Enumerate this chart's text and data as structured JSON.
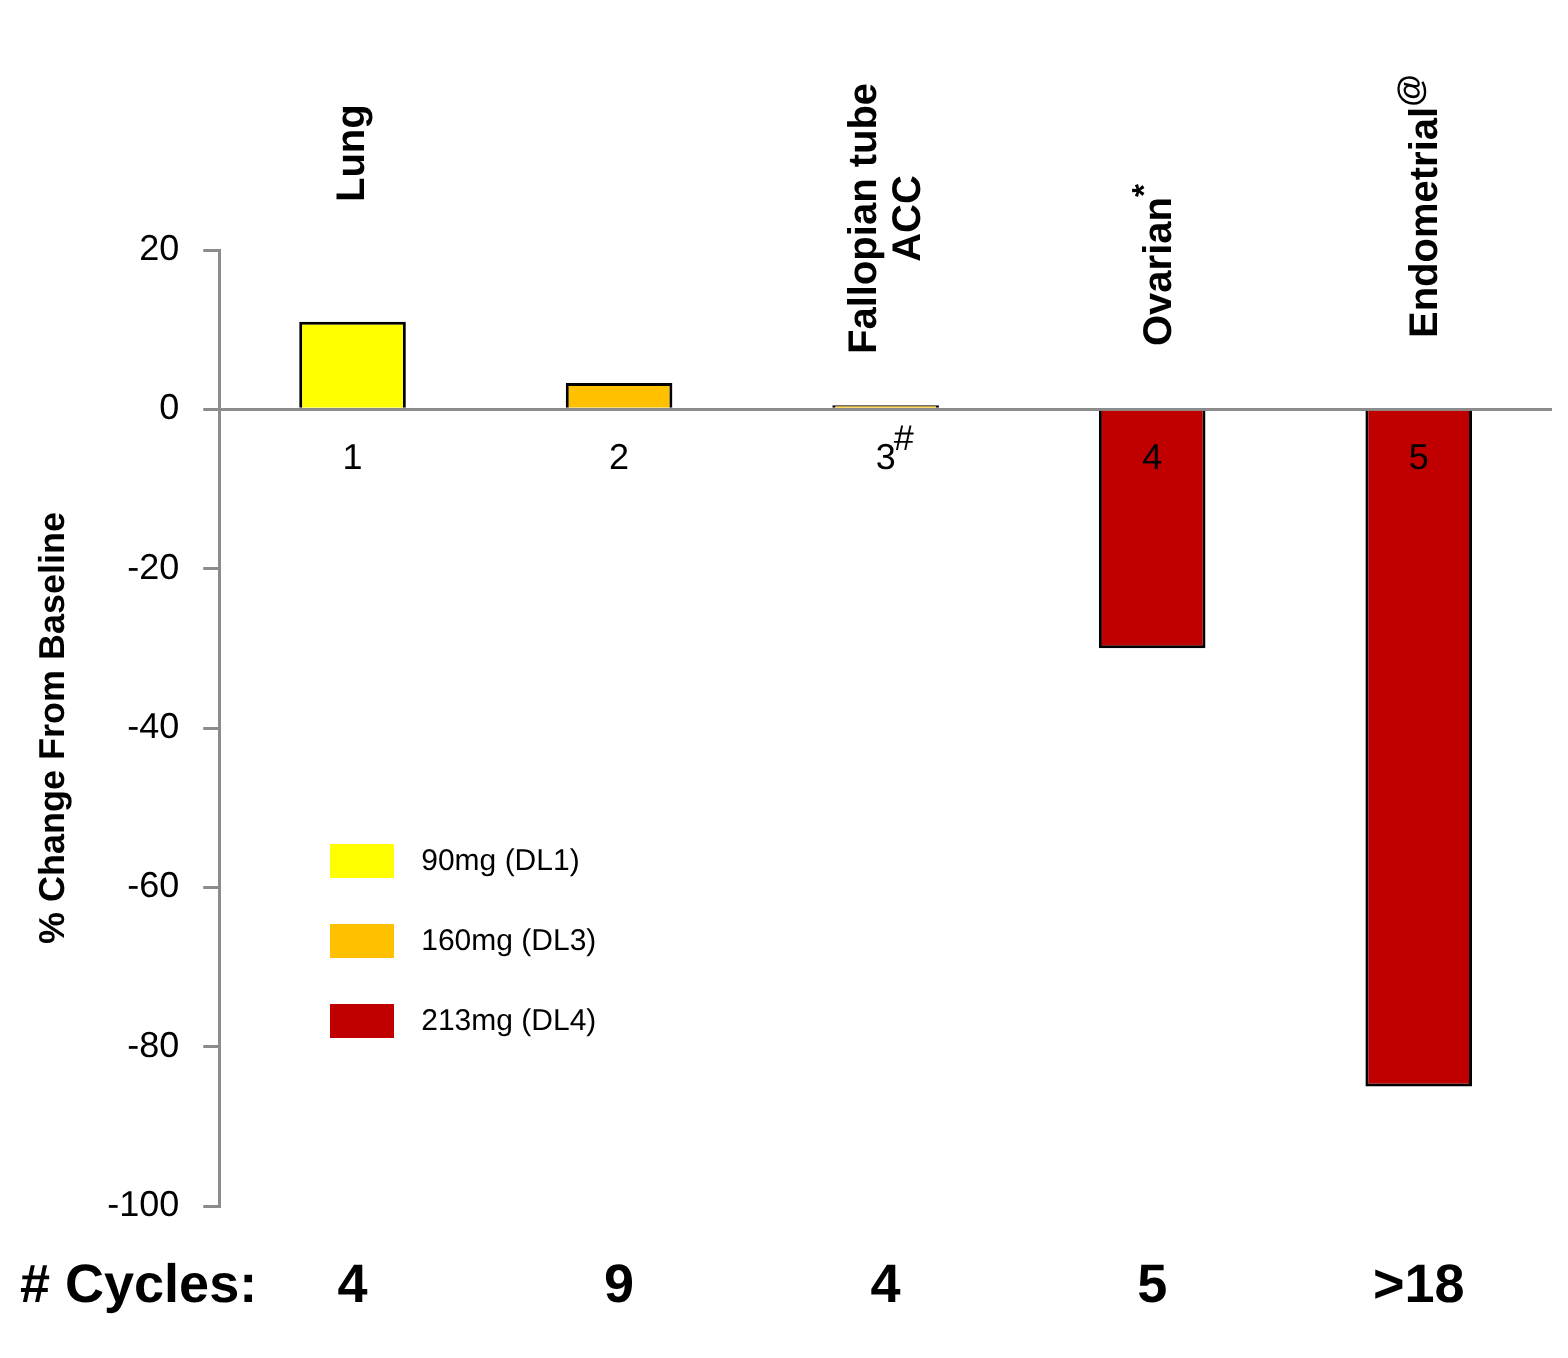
{
  "chart_data": {
    "type": "bar",
    "ylabel": "% Change From Baseline",
    "categories": [
      "1",
      "2",
      "3",
      "4",
      "5"
    ],
    "series": [
      {
        "name": "90mg (DL1)",
        "color": "#ffff00",
        "values": [
          11,
          null,
          null,
          null,
          null
        ]
      },
      {
        "name": "160mg (DL3)",
        "color": "#ffc000",
        "values": [
          null,
          3.3,
          0.5,
          null,
          null
        ]
      },
      {
        "name": "213mg (DL4)",
        "color": "#c00000",
        "values": [
          null,
          null,
          null,
          -30,
          -85
        ]
      }
    ],
    "ylim": [
      -100,
      20
    ],
    "yticks": [
      -100,
      -80,
      -60,
      -40,
      -20,
      0,
      20
    ],
    "grid": false,
    "legend": "left",
    "annotations": [
      "Lung",
      "Fallopian tube\nACC",
      "Ovarian$^{*}$",
      "Endometrial$^{@}$",
      "#",
      "# Cycles:",
      "4",
      "9",
      "4",
      "5",
      ">18"
    ]
  }
}
